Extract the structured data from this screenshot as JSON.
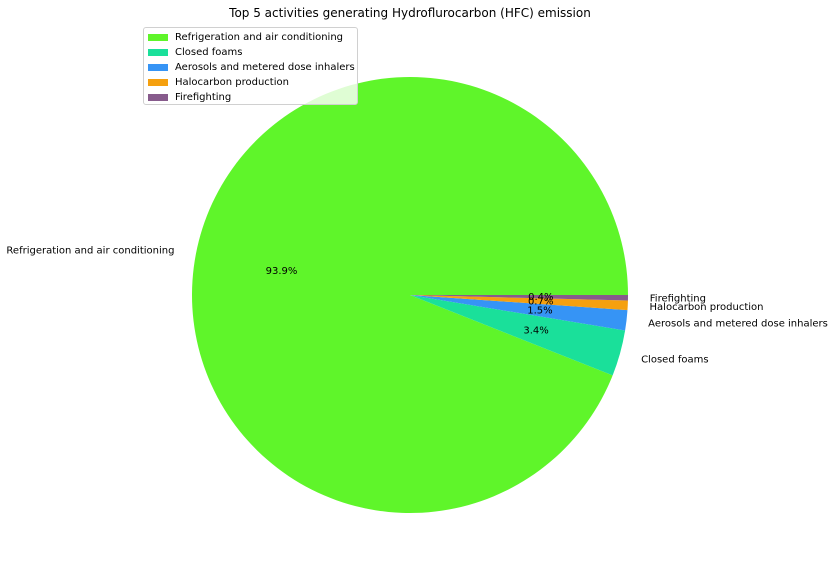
{
  "chart_data": {
    "type": "pie",
    "title": "Top 5 activities generating Hydroflurocarbon (HFC) emission",
    "labels": [
      "Refrigeration and air conditioning",
      "Closed foams",
      "Aerosols and metered dose inhalers",
      "Halocarbon production",
      "Firefighting"
    ],
    "values": [
      93.9,
      3.4,
      1.5,
      0.7,
      0.4
    ],
    "pct_labels": [
      "93.9%",
      "3.4%",
      "1.5%",
      "0.7%",
      "0.4%"
    ],
    "colors": [
      "#5ff52a",
      "#1ae09a",
      "#3694f5",
      "#f5a00f",
      "#875b8c"
    ],
    "legend_position": "upper left",
    "start_angle": 0,
    "direction": "counterclockwise"
  }
}
